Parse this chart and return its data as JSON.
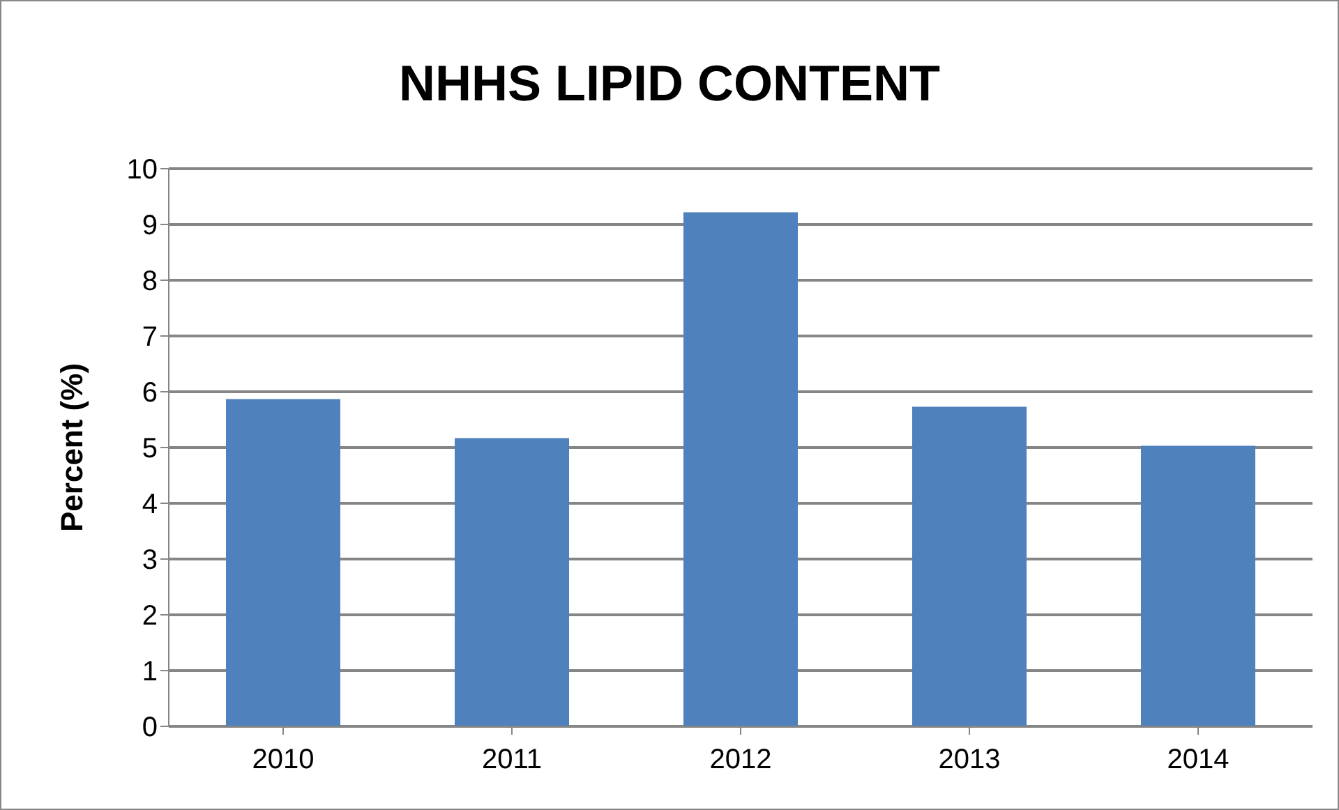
{
  "chart_data": {
    "type": "bar",
    "title": "NHHS LIPID CONTENT",
    "ylabel": "Percent (%)",
    "categories": [
      "2010",
      "2011",
      "2012",
      "2013",
      "2014"
    ],
    "values": [
      5.87,
      5.17,
      9.22,
      5.73,
      5.03
    ],
    "color": "#4f81bd",
    "ylim": [
      0,
      10
    ],
    "yticks": [
      0,
      1,
      2,
      3,
      4,
      5,
      6,
      7,
      8,
      9,
      10
    ],
    "grid": "y"
  }
}
